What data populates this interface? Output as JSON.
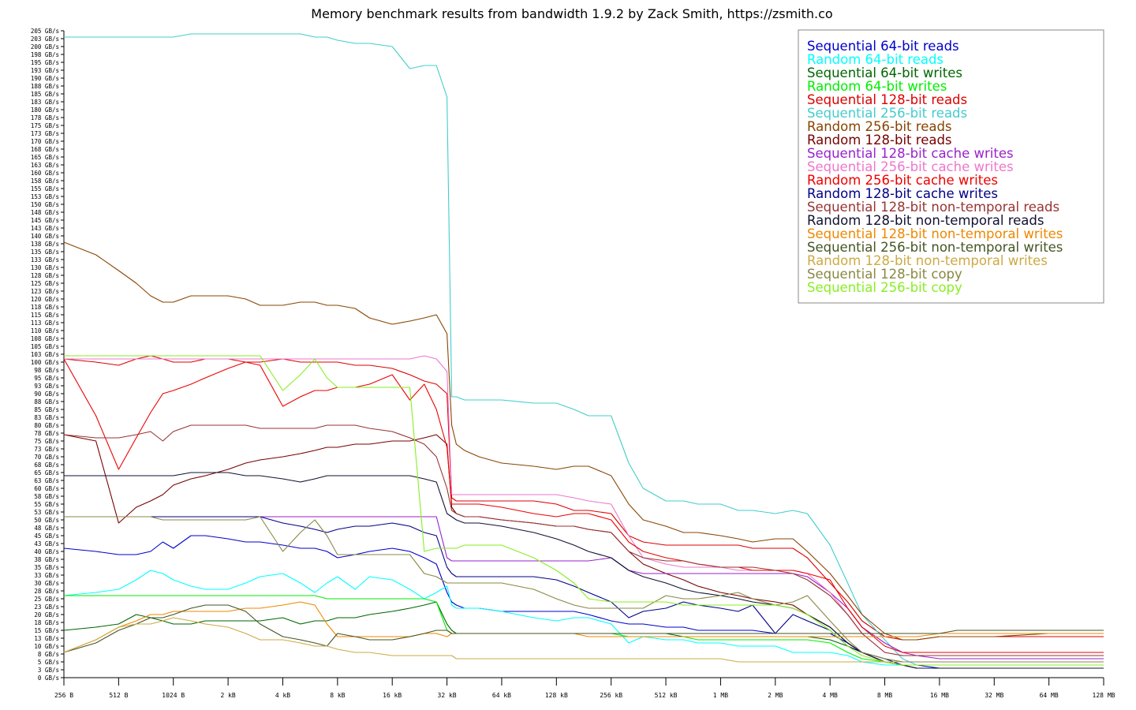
{
  "chart_data": {
    "type": "line",
    "title": "Memory benchmark results from bandwidth 1.9.2 by Zack Smith, https://zsmith.co",
    "xlabel": "",
    "ylabel": "",
    "x_scale": "log2",
    "x": [
      "256 B",
      "384 B",
      "512 B",
      "640 B",
      "768 B",
      "896 B",
      "1024 B",
      "1280 B",
      "1536 B",
      "2 kB",
      "2.5 kB",
      "3 kB",
      "4 kB",
      "5 kB",
      "6 kB",
      "7 kB",
      "8 kB",
      "10 kB",
      "12 kB",
      "16 kB",
      "20 kB",
      "24 kB",
      "28 kB",
      "32 kB",
      "34 kB",
      "36 kB",
      "40 kB",
      "48 kB",
      "64 kB",
      "96 kB",
      "128 kB",
      "160 kB",
      "192 kB",
      "256 kB",
      "320 kB",
      "384 kB",
      "512 kB",
      "640 kB",
      "768 kB",
      "1 MB",
      "1.25 MB",
      "1.5 MB",
      "2 MB",
      "2.5 MB",
      "3 MB",
      "4 MB",
      "5 MB",
      "6 MB",
      "8 MB",
      "10 MB",
      "12 MB",
      "16 MB",
      "20 MB",
      "24 MB",
      "32 MB",
      "64 MB",
      "128 MB"
    ],
    "x_ticks": [
      "256 B",
      "512 B",
      "1024 B",
      "2 kB",
      "4 kB",
      "8 kB",
      "16 kB",
      "32 kB",
      "64 kB",
      "128 kB",
      "256 kB",
      "512 kB",
      "1 MB",
      "2 MB",
      "4 MB",
      "8 MB",
      "16 MB",
      "32 MB",
      "64 MB",
      "128 MB"
    ],
    "y_unit": "GB/s",
    "ylim": [
      0,
      205
    ],
    "grid": false,
    "legend_position": "top-right",
    "series": [
      {
        "name": "Sequential 64-bit reads",
        "color": "#0000cc",
        "values": [
          41,
          40,
          39,
          39,
          40,
          43,
          41,
          45,
          45,
          44,
          43,
          43,
          42,
          41,
          41,
          40,
          38,
          39,
          40,
          41,
          40,
          38,
          36,
          27,
          24,
          23,
          22,
          22,
          21,
          21,
          21,
          21,
          20,
          18,
          17,
          17,
          16,
          16,
          15,
          15,
          15,
          15,
          14,
          14,
          14,
          14,
          11,
          8,
          5,
          4,
          4,
          3,
          3,
          3,
          3,
          3,
          3
        ]
      },
      {
        "name": "Random 64-bit reads",
        "color": "#00ffff",
        "values": [
          26,
          27,
          28,
          31,
          34,
          33,
          31,
          29,
          28,
          28,
          30,
          32,
          33,
          30,
          27,
          30,
          32,
          28,
          32,
          31,
          28,
          25,
          27,
          29,
          23,
          22,
          22,
          22,
          21,
          19,
          18,
          19,
          19,
          17,
          11,
          13,
          12,
          12,
          11,
          11,
          10,
          10,
          10,
          8,
          8,
          8,
          7,
          5,
          4,
          4,
          4,
          4,
          4,
          4,
          4,
          4,
          4
        ]
      },
      {
        "name": "Sequential 64-bit writes",
        "color": "#006600",
        "values": [
          15,
          16,
          17,
          20,
          19,
          18,
          17,
          17,
          18,
          18,
          18,
          18,
          19,
          17,
          18,
          18,
          19,
          19,
          20,
          21,
          22,
          23,
          24,
          17,
          15,
          14,
          14,
          14,
          14,
          14,
          14,
          14,
          14,
          14,
          14,
          14,
          14,
          13,
          13,
          13,
          13,
          13,
          13,
          13,
          13,
          12,
          10,
          8,
          6,
          5,
          5,
          5,
          5,
          5,
          5,
          5,
          5
        ]
      },
      {
        "name": "Random 64-bit writes",
        "color": "#00ee00",
        "values": [
          26,
          26,
          26,
          26,
          26,
          26,
          26,
          26,
          26,
          26,
          26,
          26,
          26,
          26,
          26,
          25,
          25,
          25,
          25,
          25,
          25,
          25,
          24,
          15,
          14,
          14,
          14,
          14,
          14,
          14,
          14,
          14,
          14,
          14,
          13,
          13,
          13,
          13,
          12,
          12,
          12,
          12,
          12,
          12,
          12,
          11,
          8,
          6,
          5,
          4,
          4,
          4,
          4,
          4,
          4,
          4,
          4
        ]
      },
      {
        "name": "Sequential 128-bit reads",
        "color": "#dd0000",
        "values": [
          101,
          100,
          99,
          101,
          102,
          101,
          100,
          100,
          101,
          101,
          100,
          100,
          101,
          100,
          100,
          100,
          100,
          99,
          99,
          98,
          96,
          94,
          93,
          90,
          57,
          56,
          56,
          56,
          56,
          56,
          55,
          53,
          53,
          52,
          45,
          43,
          42,
          42,
          42,
          42,
          42,
          41,
          41,
          41,
          38,
          30,
          24,
          18,
          13,
          12,
          12,
          13,
          13,
          13,
          13,
          13,
          13
        ]
      },
      {
        "name": "Sequential 256-bit reads",
        "color": "#44cccc",
        "values": [
          203,
          203,
          203,
          203,
          203,
          203,
          203,
          204,
          204,
          204,
          204,
          204,
          204,
          204,
          203,
          203,
          202,
          201,
          201,
          200,
          193,
          194,
          194,
          184,
          89,
          89,
          88,
          88,
          88,
          87,
          87,
          85,
          83,
          83,
          68,
          60,
          56,
          56,
          55,
          55,
          53,
          53,
          52,
          53,
          52,
          42,
          30,
          20,
          12,
          6,
          4,
          4,
          4,
          4,
          4,
          4,
          4
        ]
      },
      {
        "name": "Random 256-bit reads",
        "color": "#884400",
        "values": [
          138,
          134,
          129,
          125,
          121,
          119,
          119,
          121,
          121,
          121,
          120,
          118,
          118,
          119,
          119,
          118,
          118,
          117,
          114,
          112,
          113,
          114,
          115,
          109,
          80,
          74,
          72,
          70,
          68,
          67,
          66,
          67,
          67,
          64,
          55,
          50,
          48,
          46,
          46,
          45,
          44,
          43,
          44,
          44,
          40,
          33,
          26,
          20,
          14,
          12,
          12,
          13,
          13,
          13,
          13,
          14,
          14
        ]
      },
      {
        "name": "Random 128-bit reads",
        "color": "#770000",
        "values": [
          77,
          75,
          49,
          54,
          56,
          58,
          61,
          63,
          64,
          66,
          68,
          69,
          70,
          71,
          72,
          73,
          73,
          74,
          74,
          75,
          75,
          76,
          77,
          74,
          54,
          52,
          51,
          51,
          50,
          49,
          48,
          48,
          47,
          46,
          40,
          36,
          33,
          31,
          29,
          27,
          26,
          25,
          24,
          23,
          20,
          16,
          11,
          8,
          5,
          4,
          3,
          3,
          3,
          3,
          3,
          3,
          3
        ]
      },
      {
        "name": "Sequential 128-bit cache writes",
        "color": "#9922cc",
        "values": [
          51,
          51,
          51,
          51,
          51,
          51,
          51,
          51,
          51,
          51,
          51,
          51,
          51,
          51,
          51,
          51,
          51,
          51,
          51,
          51,
          51,
          51,
          51,
          38,
          37,
          37,
          37,
          37,
          37,
          37,
          37,
          37,
          37,
          38,
          34,
          33,
          33,
          33,
          33,
          33,
          33,
          33,
          33,
          33,
          32,
          27,
          22,
          16,
          11,
          8,
          7,
          6,
          6,
          6,
          6,
          6,
          6
        ]
      },
      {
        "name": "Sequential 256-bit cache writes",
        "color": "#ee77cc",
        "values": [
          101,
          101,
          101,
          101,
          101,
          101,
          101,
          101,
          101,
          101,
          101,
          101,
          101,
          101,
          101,
          101,
          101,
          101,
          101,
          101,
          101,
          102,
          101,
          97,
          58,
          58,
          58,
          58,
          58,
          58,
          58,
          57,
          56,
          55,
          45,
          38,
          36,
          35,
          35,
          35,
          34,
          34,
          34,
          34,
          33,
          27,
          20,
          14,
          8,
          7,
          7,
          7,
          7,
          7,
          7,
          7,
          7
        ]
      },
      {
        "name": "Random 256-bit cache writes",
        "color": "#ee0000",
        "values": [
          101,
          83,
          66,
          76,
          84,
          90,
          91,
          93,
          95,
          98,
          100,
          99,
          86,
          89,
          91,
          91,
          92,
          92,
          93,
          96,
          88,
          93,
          85,
          73,
          55,
          55,
          55,
          55,
          54,
          52,
          51,
          52,
          52,
          50,
          43,
          40,
          38,
          37,
          36,
          35,
          35,
          34,
          34,
          34,
          33,
          31,
          22,
          16,
          10,
          8,
          8,
          8,
          8,
          8,
          8,
          8,
          8
        ]
      },
      {
        "name": "Random 128-bit cache writes",
        "color": "#000088",
        "values": [
          51,
          51,
          51,
          51,
          51,
          51,
          51,
          51,
          51,
          51,
          51,
          51,
          49,
          48,
          47,
          46,
          47,
          48,
          48,
          49,
          48,
          46,
          45,
          35,
          33,
          32,
          32,
          32,
          32,
          32,
          31,
          29,
          27,
          24,
          19,
          21,
          22,
          24,
          23,
          22,
          21,
          23,
          14,
          20,
          18,
          15,
          10,
          8,
          6,
          4,
          3,
          3,
          3,
          3,
          3,
          3,
          3
        ]
      },
      {
        "name": "Sequential 128-bit non-temporal reads",
        "color": "#993333",
        "values": [
          77,
          76,
          76,
          77,
          78,
          75,
          78,
          80,
          80,
          80,
          80,
          79,
          79,
          79,
          79,
          80,
          80,
          80,
          79,
          78,
          76,
          74,
          70,
          60,
          53,
          52,
          51,
          51,
          50,
          49,
          48,
          48,
          47,
          46,
          40,
          38,
          37,
          37,
          36,
          35,
          35,
          35,
          34,
          33,
          31,
          26,
          20,
          14,
          8,
          7,
          7,
          7,
          7,
          7,
          7,
          7,
          7
        ]
      },
      {
        "name": "Random 128-bit non-temporal reads",
        "color": "#111133",
        "values": [
          64,
          64,
          64,
          64,
          64,
          64,
          64,
          65,
          65,
          65,
          64,
          64,
          63,
          62,
          63,
          64,
          64,
          64,
          64,
          64,
          64,
          63,
          62,
          52,
          51,
          50,
          49,
          49,
          48,
          46,
          44,
          42,
          40,
          38,
          34,
          32,
          30,
          28,
          27,
          26,
          25,
          24,
          23,
          22,
          20,
          16,
          11,
          8,
          5,
          4,
          3,
          3,
          3,
          3,
          3,
          3,
          3
        ]
      },
      {
        "name": "Sequential 128-bit non-temporal writes",
        "color": "#ee8800",
        "values": [
          8,
          12,
          16,
          18,
          20,
          20,
          21,
          21,
          21,
          21,
          22,
          22,
          23,
          24,
          23,
          17,
          13,
          13,
          13,
          13,
          13,
          14,
          14,
          13,
          14,
          14,
          14,
          14,
          14,
          14,
          14,
          14,
          13,
          13,
          13,
          13,
          13,
          13,
          13,
          13,
          13,
          13,
          13,
          13,
          13,
          13,
          13,
          13,
          13,
          13,
          13,
          14,
          14,
          14,
          14,
          14,
          14
        ]
      },
      {
        "name": "Sequential 256-bit non-temporal writes",
        "color": "#445522",
        "values": [
          8,
          11,
          15,
          17,
          19,
          19,
          20,
          22,
          23,
          23,
          21,
          17,
          13,
          12,
          11,
          10,
          14,
          13,
          12,
          12,
          13,
          14,
          15,
          15,
          14,
          14,
          14,
          14,
          14,
          14,
          14,
          14,
          14,
          14,
          14,
          14,
          14,
          14,
          14,
          14,
          14,
          14,
          14,
          14,
          14,
          14,
          14,
          14,
          14,
          14,
          14,
          14,
          15,
          15,
          15,
          15,
          15
        ]
      },
      {
        "name": "Random 128-bit non-temporal writes",
        "color": "#ccaa44",
        "values": [
          8,
          12,
          16,
          17,
          17,
          18,
          19,
          18,
          17,
          16,
          14,
          12,
          12,
          11,
          10,
          10,
          9,
          8,
          8,
          7,
          7,
          7,
          7,
          7,
          7,
          6,
          6,
          6,
          6,
          6,
          6,
          6,
          6,
          6,
          6,
          6,
          6,
          6,
          6,
          6,
          5,
          5,
          5,
          5,
          5,
          5,
          5,
          5,
          5,
          5,
          5,
          5,
          5,
          5,
          5,
          5,
          5
        ]
      },
      {
        "name": "Sequential 128-bit copy",
        "color": "#888844",
        "values": [
          51,
          51,
          51,
          51,
          51,
          50,
          50,
          50,
          50,
          50,
          50,
          51,
          40,
          46,
          50,
          45,
          39,
          39,
          39,
          39,
          39,
          33,
          32,
          30,
          30,
          30,
          30,
          30,
          30,
          28,
          25,
          23,
          22,
          22,
          22,
          22,
          26,
          25,
          25,
          26,
          27,
          25,
          23,
          24,
          26,
          18,
          12,
          8,
          6,
          5,
          5,
          5,
          5,
          5,
          5,
          5,
          5
        ]
      },
      {
        "name": "Sequential 256-bit copy",
        "color": "#88ee22",
        "values": [
          102,
          102,
          102,
          102,
          102,
          102,
          102,
          102,
          102,
          102,
          102,
          102,
          91,
          96,
          101,
          95,
          92,
          92,
          92,
          92,
          92,
          40,
          41,
          41,
          41,
          41,
          42,
          42,
          42,
          38,
          34,
          30,
          25,
          24,
          24,
          24,
          24,
          23,
          23,
          23,
          23,
          23,
          23,
          22,
          20,
          15,
          10,
          7,
          5,
          4,
          4,
          4,
          4,
          4,
          4,
          4,
          4
        ]
      }
    ]
  }
}
